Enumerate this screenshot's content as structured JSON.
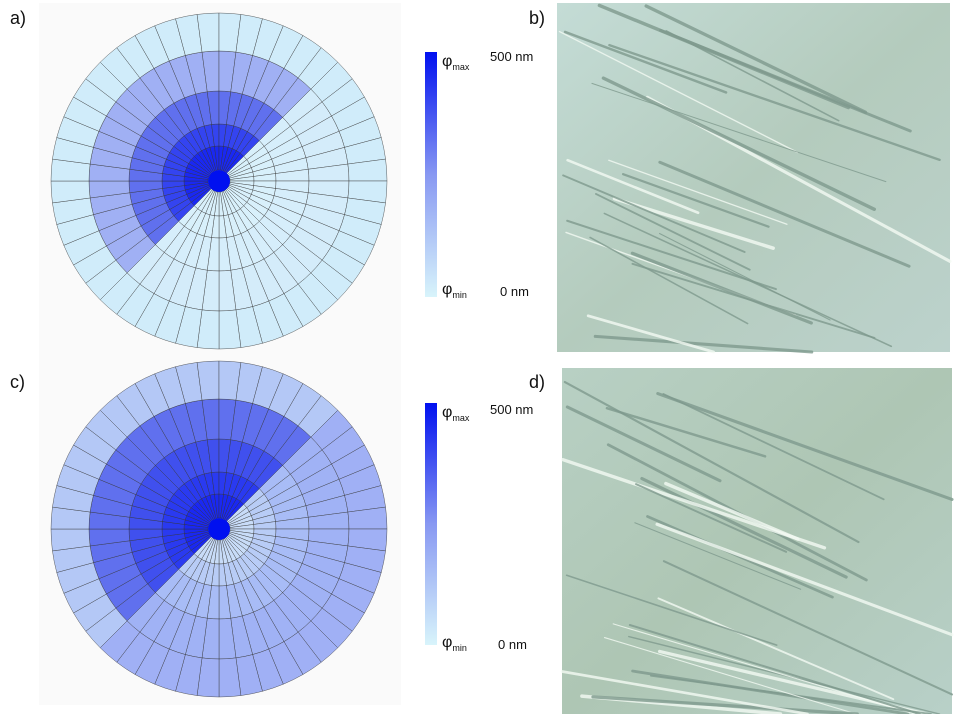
{
  "panels": [
    {
      "label": "a)",
      "colorbar": {
        "top_symbol": "φ",
        "top_subscript": "max",
        "top_value": "500 nm",
        "bottom_symbol": "φ",
        "bottom_subscript": "min",
        "bottom_value": "0 nm"
      }
    },
    {
      "label": "b)"
    },
    {
      "label": "c)",
      "colorbar": {
        "top_symbol": "φ",
        "top_subscript": "max",
        "top_value": "500 nm",
        "bottom_symbol": "φ",
        "bottom_subscript": "min",
        "bottom_value": "0 nm"
      }
    },
    {
      "label": "d)"
    }
  ]
}
